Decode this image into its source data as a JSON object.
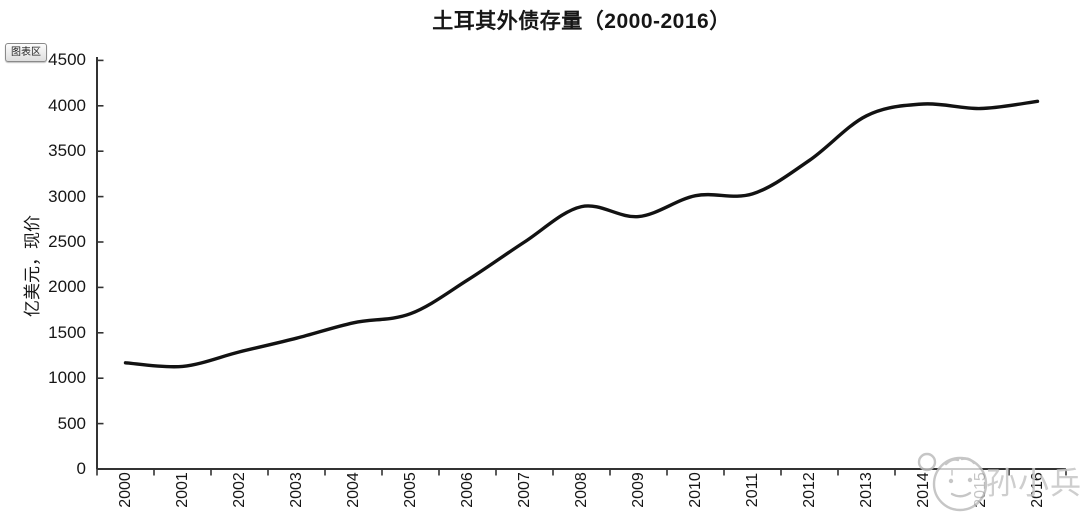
{
  "title": "土耳其外债存量（2000-2016）",
  "chart_area_tooltip": "图表区",
  "watermark": {
    "text": "孙小兵",
    "icon": "face-icon"
  },
  "colors": {
    "line": "#121212",
    "axis": "#333333",
    "text": "#161616",
    "watermark": "#c6c6c6",
    "background": "#ffffff"
  },
  "chart_data": {
    "type": "line",
    "title": "土耳其外债存量（2000-2016）",
    "ylabel": "亿美元，现价",
    "xlabel": "",
    "categories": [
      "2000",
      "2001",
      "2002",
      "2003",
      "2004",
      "2005",
      "2006",
      "2007",
      "2008",
      "2009",
      "2010",
      "2011",
      "2012",
      "2013",
      "2014",
      "2015",
      "2016"
    ],
    "values": [
      1170,
      1130,
      1290,
      1440,
      1610,
      1710,
      2080,
      2500,
      2890,
      2780,
      3010,
      3030,
      3400,
      3890,
      4020,
      3970,
      4050
    ],
    "ylim": [
      0,
      4500
    ],
    "ytick_step": 500,
    "grid": false,
    "legend": false,
    "smooth": true,
    "line_color": "#121212"
  }
}
